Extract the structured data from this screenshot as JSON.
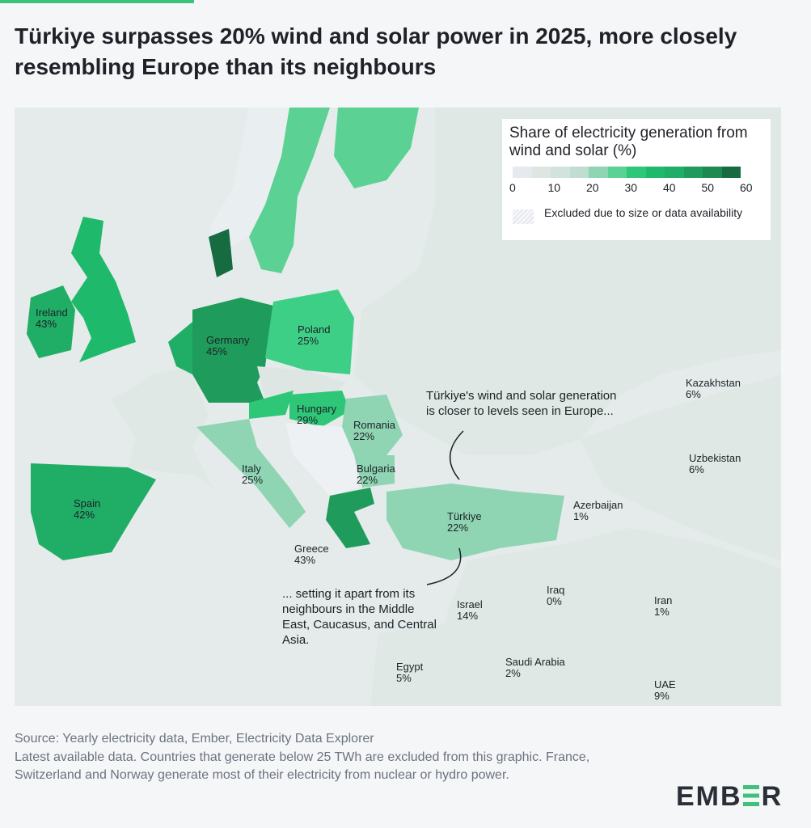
{
  "title": "Türkiye surpasses 20% wind and solar power in 2025, more closely resembling Europe than its neighbours",
  "legend": {
    "title": "Share of electricity generation from wind and solar (%)",
    "ticks": [
      "0",
      "10",
      "20",
      "30",
      "40",
      "50",
      "60"
    ],
    "colors": [
      "#e6e9ee",
      "#dde6e3",
      "#d2e2dc",
      "#bfddd0",
      "#8fd5b3",
      "#5bd194",
      "#2ec677",
      "#1fb96c",
      "#20ad66",
      "#1f9c5c",
      "#1d8a52",
      "#166c40"
    ],
    "excluded": "Excluded due to size or data availability"
  },
  "countries": [
    {
      "name": "Ireland",
      "value": "43%",
      "color": "#20ad66"
    },
    {
      "name": "Germany",
      "value": "45%",
      "color": "#1f9c5c"
    },
    {
      "name": "Poland",
      "value": "25%",
      "color": "#3ecf87"
    },
    {
      "name": "Hungary",
      "value": "29%",
      "color": "#2ec677"
    },
    {
      "name": "Romania",
      "value": "22%",
      "color": "#8fd5b3"
    },
    {
      "name": "Bulgaria",
      "value": "22%",
      "color": "#8fd5b3"
    },
    {
      "name": "Italy",
      "value": "25%",
      "color": "#8fd5b3"
    },
    {
      "name": "Spain",
      "value": "42%",
      "color": "#20ad66"
    },
    {
      "name": "Greece",
      "value": "43%",
      "color": "#1f9c5c"
    },
    {
      "name": "Türkiye",
      "value": "22%",
      "color": "#8fd5b3"
    },
    {
      "name": "Azerbaijan",
      "value": "1%",
      "color": "#e6e9ee"
    },
    {
      "name": "Kazakhstan",
      "value": "6%",
      "color": "#dde6e3"
    },
    {
      "name": "Uzbekistan",
      "value": "6%",
      "color": "#dde6e3"
    },
    {
      "name": "Iraq",
      "value": "0%",
      "color": "#e6e9ee"
    },
    {
      "name": "Iran",
      "value": "1%",
      "color": "#e6e9ee"
    },
    {
      "name": "Israel",
      "value": "14%",
      "color": "#d2e2dc"
    },
    {
      "name": "Egypt",
      "value": "5%",
      "color": "#dde6e3"
    },
    {
      "name": "Saudi Arabia",
      "value": "2%",
      "color": "#e6e9ee"
    },
    {
      "name": "UAE",
      "value": "9%",
      "color": "#dde6e3"
    }
  ],
  "annotations": {
    "top": "Türkiye's wind and solar generation is closer to levels seen in Europe...",
    "bottom": "... setting it apart from its neighbours in the Middle East, Caucasus, and Central Asia."
  },
  "footer": {
    "source": "Source: Yearly electricity data, Ember, Electricity Data Explorer",
    "note": "Latest available data. Countries that generate below 25 TWh are excluded from this graphic. France, Switzerland and Norway generate most of their electricity from nuclear or hydro power."
  },
  "logo": "EMBER"
}
